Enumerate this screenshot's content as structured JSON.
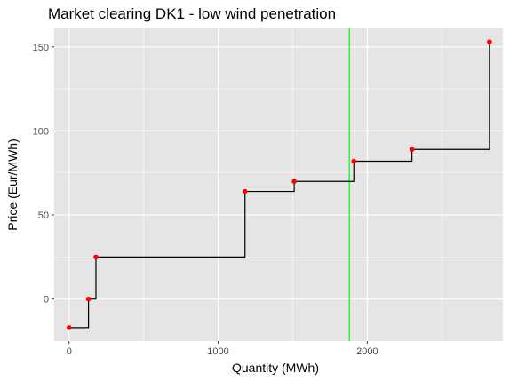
{
  "chart_data": {
    "type": "line",
    "title": "Market clearing DK1 - low wind penetration",
    "xlabel": "Quantity (MWh)",
    "ylabel": "Price (Eur/MWh)",
    "xlim": [
      -100,
      2910
    ],
    "ylim": [
      -25,
      161
    ],
    "x_ticks": [
      0,
      1000,
      2000
    ],
    "x_tick_labels": [
      "0",
      "1000",
      "2000"
    ],
    "y_ticks": [
      0,
      50,
      100,
      150
    ],
    "y_tick_labels": [
      "0",
      "50",
      "100",
      "150"
    ],
    "grid": true,
    "series": [
      {
        "kind": "step",
        "color": "#000000",
        "points": [
          {
            "x": 0,
            "y": -17
          },
          {
            "x": 130,
            "y": 0
          },
          {
            "x": 180,
            "y": 25
          },
          {
            "x": 1180,
            "y": 64
          },
          {
            "x": 1510,
            "y": 70
          },
          {
            "x": 1910,
            "y": 82
          },
          {
            "x": 2300,
            "y": 89
          },
          {
            "x": 2820,
            "y": 153
          }
        ]
      },
      {
        "kind": "points",
        "color": "#ff0000",
        "points": [
          {
            "x": 0,
            "y": -17
          },
          {
            "x": 130,
            "y": 0
          },
          {
            "x": 180,
            "y": 25
          },
          {
            "x": 1180,
            "y": 64
          },
          {
            "x": 1510,
            "y": 70
          },
          {
            "x": 1910,
            "y": 82
          },
          {
            "x": 2300,
            "y": 89
          },
          {
            "x": 2820,
            "y": 153
          }
        ]
      }
    ],
    "vlines": [
      {
        "x": 1880,
        "color": "#00ee00"
      }
    ],
    "panel_background": "#e5e5e5",
    "grid_color": "#ffffff"
  }
}
